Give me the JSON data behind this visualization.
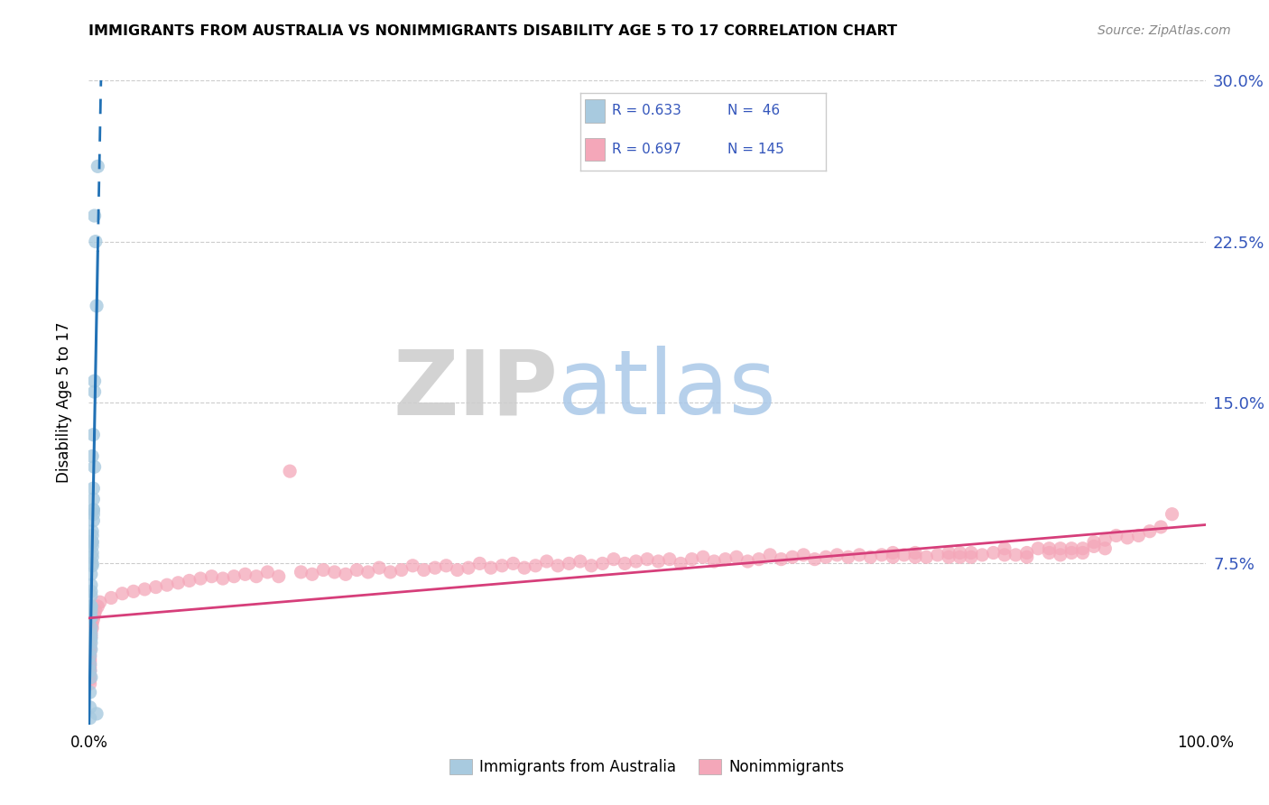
{
  "title": "IMMIGRANTS FROM AUSTRALIA VS NONIMMIGRANTS DISABILITY AGE 5 TO 17 CORRELATION CHART",
  "source": "Source: ZipAtlas.com",
  "ylabel": "Disability Age 5 to 17",
  "xlim": [
    0,
    1.0
  ],
  "ylim": [
    0,
    0.3
  ],
  "blue_color": "#a8cadf",
  "pink_color": "#f4a7b9",
  "blue_line_color": "#2171b5",
  "pink_line_color": "#d63e7a",
  "watermark_zip": "ZIP",
  "watermark_atlas": "atlas",
  "blue_scatter_x": [
    0.008,
    0.007,
    0.007,
    0.006,
    0.005,
    0.005,
    0.005,
    0.005,
    0.004,
    0.004,
    0.004,
    0.004,
    0.004,
    0.004,
    0.004,
    0.003,
    0.003,
    0.003,
    0.003,
    0.003,
    0.003,
    0.003,
    0.003,
    0.003,
    0.003,
    0.002,
    0.002,
    0.002,
    0.002,
    0.002,
    0.002,
    0.002,
    0.002,
    0.002,
    0.002,
    0.002,
    0.002,
    0.002,
    0.002,
    0.002,
    0.001,
    0.001,
    0.001,
    0.001,
    0.001,
    0.001
  ],
  "blue_scatter_y": [
    0.26,
    0.005,
    0.195,
    0.225,
    0.237,
    0.16,
    0.155,
    0.12,
    0.11,
    0.105,
    0.1,
    0.1,
    0.098,
    0.095,
    0.135,
    0.09,
    0.088,
    0.085,
    0.085,
    0.083,
    0.08,
    0.078,
    0.075,
    0.074,
    0.125,
    0.07,
    0.065,
    0.062,
    0.06,
    0.055,
    0.055,
    0.053,
    0.05,
    0.05,
    0.045,
    0.042,
    0.04,
    0.038,
    0.035,
    0.022,
    0.032,
    0.028,
    0.025,
    0.015,
    0.008,
    0.003
  ],
  "pink_scatter_x": [
    0.97,
    0.96,
    0.95,
    0.94,
    0.93,
    0.92,
    0.91,
    0.91,
    0.9,
    0.9,
    0.89,
    0.89,
    0.88,
    0.88,
    0.87,
    0.87,
    0.86,
    0.86,
    0.85,
    0.84,
    0.84,
    0.83,
    0.82,
    0.82,
    0.81,
    0.8,
    0.79,
    0.79,
    0.78,
    0.78,
    0.77,
    0.77,
    0.76,
    0.75,
    0.74,
    0.74,
    0.73,
    0.72,
    0.72,
    0.71,
    0.7,
    0.69,
    0.68,
    0.67,
    0.66,
    0.65,
    0.64,
    0.63,
    0.62,
    0.61,
    0.6,
    0.59,
    0.58,
    0.57,
    0.56,
    0.55,
    0.54,
    0.53,
    0.52,
    0.51,
    0.5,
    0.49,
    0.48,
    0.47,
    0.46,
    0.45,
    0.44,
    0.43,
    0.42,
    0.41,
    0.4,
    0.39,
    0.38,
    0.37,
    0.36,
    0.35,
    0.34,
    0.33,
    0.32,
    0.31,
    0.3,
    0.29,
    0.28,
    0.27,
    0.26,
    0.25,
    0.24,
    0.23,
    0.22,
    0.21,
    0.2,
    0.19,
    0.18,
    0.17,
    0.16,
    0.15,
    0.14,
    0.13,
    0.12,
    0.11,
    0.1,
    0.09,
    0.08,
    0.07,
    0.06,
    0.05,
    0.04,
    0.03,
    0.02,
    0.01,
    0.008,
    0.006,
    0.005,
    0.004,
    0.003,
    0.003,
    0.002,
    0.002,
    0.001,
    0.001,
    0.001,
    0.001,
    0.001,
    0.001,
    0.001,
    0.001,
    0.001,
    0.001,
    0.001,
    0.001,
    0.001,
    0.001,
    0.001,
    0.001,
    0.001,
    0.001,
    0.001,
    0.001,
    0.001,
    0.001,
    0.001,
    0.001
  ],
  "pink_scatter_y": [
    0.098,
    0.092,
    0.09,
    0.088,
    0.087,
    0.088,
    0.086,
    0.082,
    0.085,
    0.083,
    0.082,
    0.08,
    0.082,
    0.08,
    0.082,
    0.079,
    0.082,
    0.08,
    0.082,
    0.08,
    0.078,
    0.079,
    0.082,
    0.079,
    0.08,
    0.079,
    0.08,
    0.078,
    0.08,
    0.078,
    0.08,
    0.078,
    0.079,
    0.078,
    0.08,
    0.078,
    0.079,
    0.08,
    0.078,
    0.079,
    0.078,
    0.079,
    0.078,
    0.079,
    0.078,
    0.077,
    0.079,
    0.078,
    0.077,
    0.079,
    0.077,
    0.076,
    0.078,
    0.077,
    0.076,
    0.078,
    0.077,
    0.075,
    0.077,
    0.076,
    0.077,
    0.076,
    0.075,
    0.077,
    0.075,
    0.074,
    0.076,
    0.075,
    0.074,
    0.076,
    0.074,
    0.073,
    0.075,
    0.074,
    0.073,
    0.075,
    0.073,
    0.072,
    0.074,
    0.073,
    0.072,
    0.074,
    0.072,
    0.071,
    0.073,
    0.071,
    0.072,
    0.07,
    0.071,
    0.072,
    0.07,
    0.071,
    0.118,
    0.069,
    0.071,
    0.069,
    0.07,
    0.069,
    0.068,
    0.069,
    0.068,
    0.067,
    0.066,
    0.065,
    0.064,
    0.063,
    0.062,
    0.061,
    0.059,
    0.057,
    0.055,
    0.053,
    0.051,
    0.049,
    0.047,
    0.045,
    0.043,
    0.041,
    0.039,
    0.037,
    0.035,
    0.033,
    0.031,
    0.029,
    0.027,
    0.025,
    0.048,
    0.046,
    0.044,
    0.042,
    0.04,
    0.038,
    0.036,
    0.034,
    0.032,
    0.03,
    0.028,
    0.026,
    0.025,
    0.023,
    0.021,
    0.019
  ]
}
